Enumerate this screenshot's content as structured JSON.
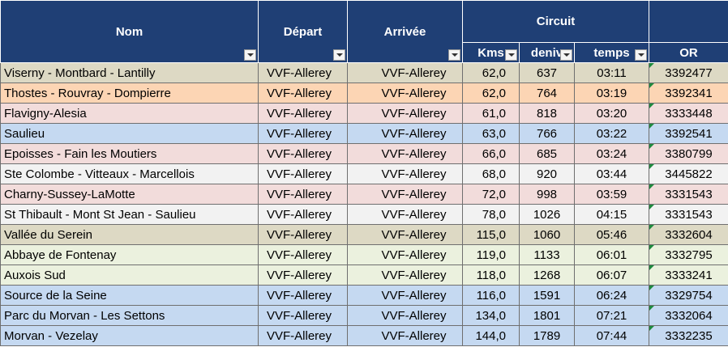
{
  "header": {
    "nom": "Nom",
    "depart": "Départ",
    "arrivee": "Arrivée",
    "circuit": "Circuit",
    "kms": "Kms",
    "deniv": "deniv",
    "temps": "temps",
    "or": "OR"
  },
  "rows": [
    [
      "Viserny - Montbard - Lantilly",
      "VVF-Allerey",
      "VVF-Allerey",
      "62,0",
      637,
      "03:11",
      3392477
    ],
    [
      "Thostes - Rouvray - Dompierre",
      "VVF-Allerey",
      "VVF-Allerey",
      "62,0",
      764,
      "03:19",
      3392341
    ],
    [
      "Flavigny-Alesia",
      "VVF-Allerey",
      "VVF-Allerey",
      "61,0",
      818,
      "03:20",
      3333448
    ],
    [
      "Saulieu",
      "VVF-Allerey",
      "VVF-Allerey",
      "63,0",
      766,
      "03:22",
      3392541
    ],
    [
      "Epoisses - Fain les Moutiers",
      "VVF-Allerey",
      "VVF-Allerey",
      "66,0",
      685,
      "03:24",
      3380799
    ],
    [
      "Ste Colombe - Vitteaux - Marcellois",
      "VVF-Allerey",
      "VVF-Allerey",
      "68,0",
      920,
      "03:44",
      3445822
    ],
    [
      "Charny-Sussey-LaMotte",
      "VVF-Allerey",
      "VVF-Allerey",
      "72,0",
      998,
      "03:59",
      3331543
    ],
    [
      "St Thibault - Mont St Jean - Saulieu",
      "VVF-Allerey",
      "VVF-Allerey",
      "78,0",
      1026,
      "04:15",
      3331543
    ],
    [
      "Vallée du Serein",
      "VVF-Allerey",
      "VVF-Allerey",
      "115,0",
      1060,
      "05:46",
      3332604
    ],
    [
      "Abbaye de Fontenay",
      "VVF-Allerey",
      "VVF-Allerey",
      "119,0",
      1133,
      "06:01",
      3332795
    ],
    [
      "Auxois Sud",
      "VVF-Allerey",
      "VVF-Allerey",
      "118,0",
      1268,
      "06:07",
      3333241
    ],
    [
      "Source de la Seine",
      "VVF-Allerey",
      "VVF-Allerey",
      "116,0",
      1591,
      "06:24",
      3329754
    ],
    [
      "Parc du Morvan - Les Settons",
      "VVF-Allerey",
      "VVF-Allerey",
      "134,0",
      1801,
      "07:21",
      3332064
    ],
    [
      "Morvan - Vezelay",
      "VVF-Allerey",
      "VVF-Allerey",
      "144,0",
      1789,
      "07:44",
      3332235
    ]
  ]
}
